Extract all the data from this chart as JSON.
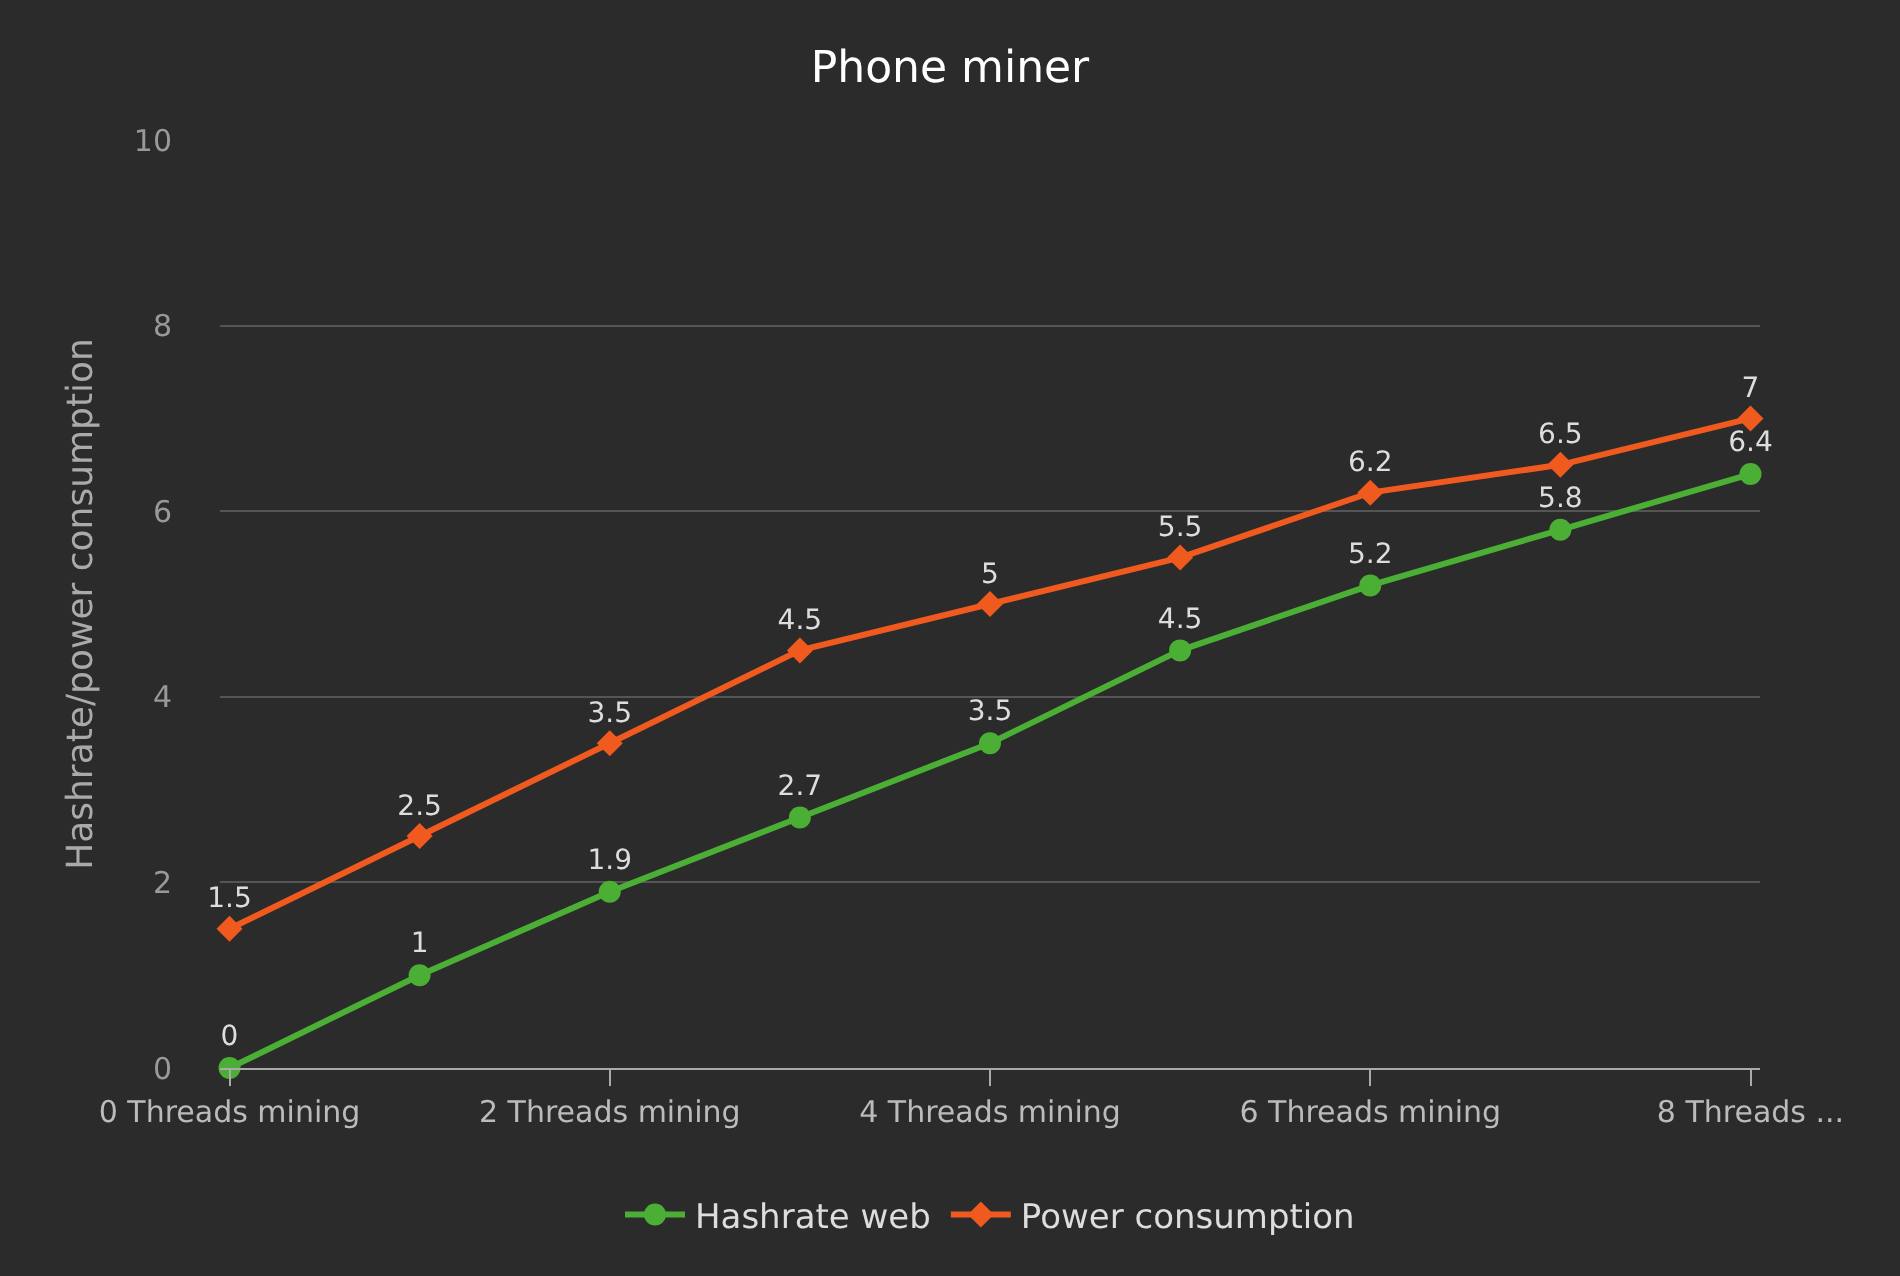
{
  "chart_data": {
    "type": "line",
    "title": "Phone miner",
    "ylabel": "Hashrate/power consumption",
    "categories": [
      "0 Threads mining",
      null,
      "2 Threads mining",
      null,
      "4 Threads mining",
      null,
      "6 Threads mining",
      null,
      "8 Threads ..."
    ],
    "series": [
      {
        "name": "Hashrate web",
        "color": "#4caf35",
        "marker": "circle",
        "values": [
          0,
          1,
          1.9,
          2.7,
          3.5,
          4.5,
          5.2,
          5.8,
          6.4
        ]
      },
      {
        "name": "Power consumption",
        "color": "#f05a1e",
        "marker": "diamond",
        "values": [
          1.5,
          2.5,
          3.5,
          4.5,
          5,
          5.5,
          6.2,
          6.5,
          7
        ]
      }
    ],
    "ylim": [
      0,
      10
    ],
    "yticks": [
      0,
      2,
      4,
      6,
      8,
      10
    ],
    "grid": "y",
    "legend": "bottom",
    "data_labels": true,
    "line_style": "solid"
  }
}
